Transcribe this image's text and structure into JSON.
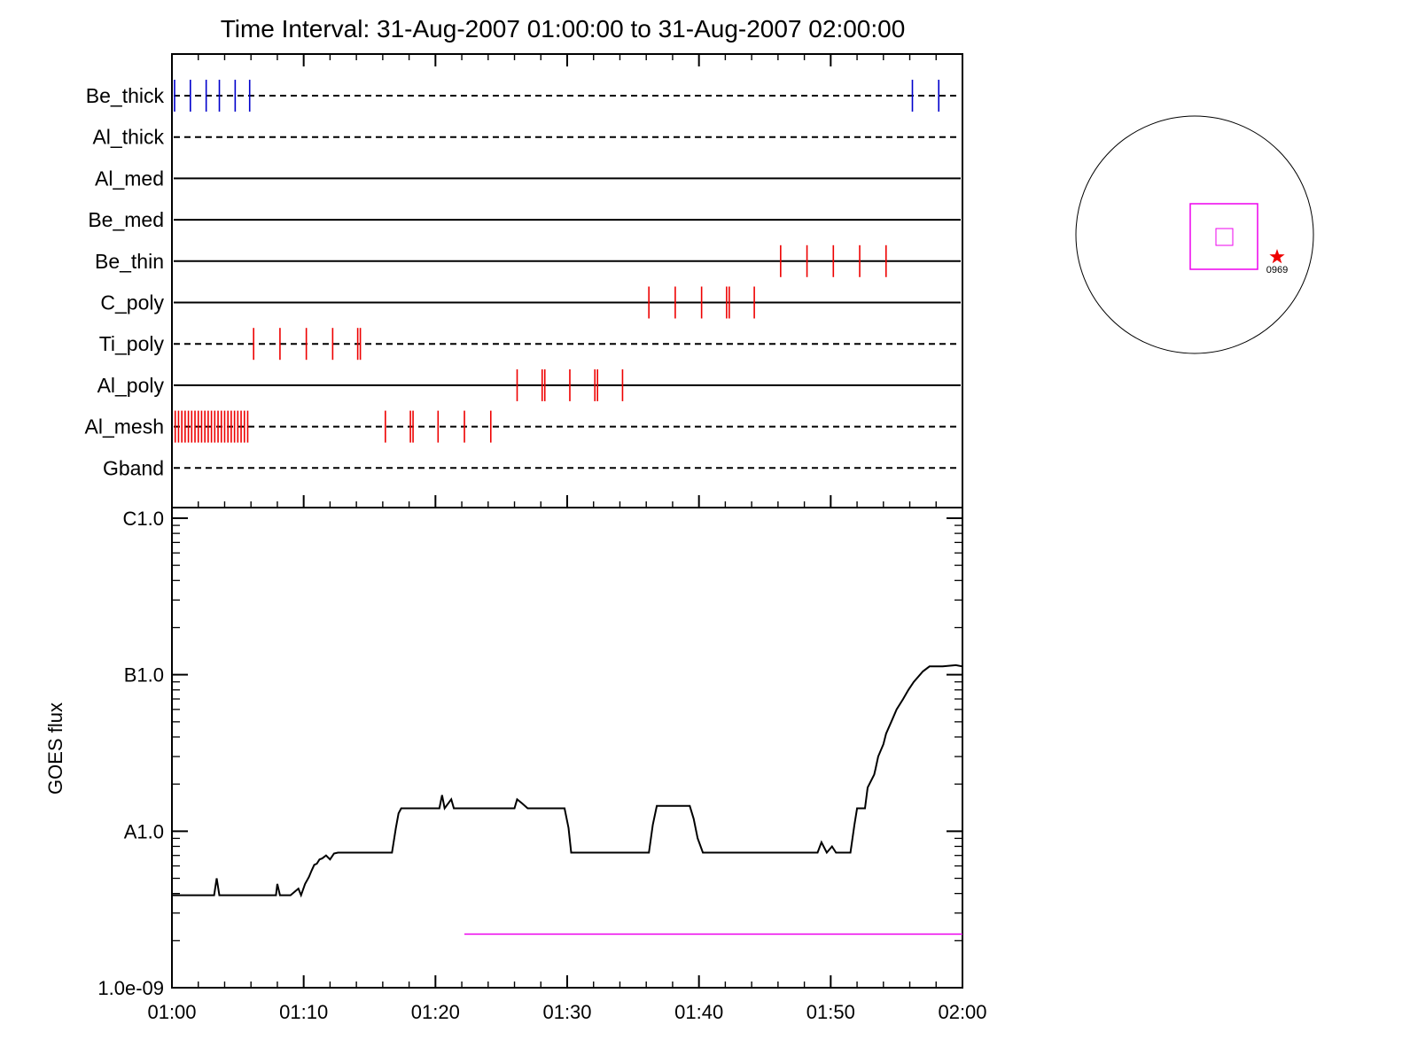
{
  "title": "Time Interval: 31-Aug-2007 01:00:00 to 31-Aug-2007 02:00:00",
  "chart_data": [
    {
      "type": "event-timeline",
      "x_range": [
        "01:00",
        "02:00"
      ],
      "x_unit": "minutes after 01:00",
      "channels": [
        {
          "name": "Be_thick",
          "style": "dashed",
          "color": "#0000cc",
          "ticks": [
            0.2,
            1.4,
            2.6,
            3.6,
            4.8,
            5.9,
            56.2,
            58.2
          ]
        },
        {
          "name": "Al_thick",
          "style": "dashed",
          "color": "#000000",
          "ticks": []
        },
        {
          "name": "Al_med",
          "style": "solid",
          "color": "#000000",
          "ticks": []
        },
        {
          "name": "Be_med",
          "style": "solid",
          "color": "#000000",
          "ticks": []
        },
        {
          "name": "Be_thin",
          "style": "solid",
          "color": "#ee0000",
          "ticks": [
            46.2,
            48.2,
            50.2,
            52.2,
            54.2
          ]
        },
        {
          "name": "C_poly",
          "style": "solid",
          "color": "#ee0000",
          "ticks": [
            36.2,
            38.2,
            40.2,
            42.1,
            42.3,
            44.2
          ]
        },
        {
          "name": "Ti_poly",
          "style": "dashed",
          "color": "#ee0000",
          "ticks": [
            6.2,
            8.2,
            10.2,
            12.2,
            14.1,
            14.3
          ]
        },
        {
          "name": "Al_poly",
          "style": "solid",
          "color": "#ee0000",
          "ticks": [
            26.2,
            28.1,
            28.3,
            30.2,
            32.1,
            32.3,
            34.2
          ]
        },
        {
          "name": "Al_mesh",
          "style": "dashed",
          "color": "#ee0000",
          "ticks": [
            0.25,
            0.5,
            0.75,
            1.0,
            1.25,
            1.5,
            1.75,
            2.0,
            2.25,
            2.5,
            2.75,
            3.0,
            3.25,
            3.5,
            3.75,
            4.0,
            4.25,
            4.5,
            4.75,
            5.0,
            5.25,
            5.5,
            5.75,
            16.2,
            18.1,
            18.3,
            20.2,
            22.2,
            24.2
          ]
        },
        {
          "name": "Gband",
          "style": "dashed",
          "color": "#000000",
          "ticks": []
        }
      ]
    },
    {
      "type": "line",
      "ylabel": "GOES flux",
      "yscale": "log",
      "ylim": [
        1e-09,
        1e-06
      ],
      "y_ticks": [
        {
          "label": "C1.0",
          "value": 1e-06
        },
        {
          "label": "B1.0",
          "value": 1e-07
        },
        {
          "label": "A1.0",
          "value": 1e-08
        },
        {
          "label": "1.0e-09",
          "value": 1e-09
        }
      ],
      "x_ticks": [
        "01:00",
        "01:10",
        "01:20",
        "01:30",
        "01:40",
        "01:50",
        "02:00"
      ],
      "xlim": [
        0,
        60
      ],
      "series": [
        {
          "color": "#000000",
          "x": [
            0,
            0.5,
            3.2,
            3.4,
            3.6,
            7.9,
            8,
            8.2,
            9,
            9.6,
            9.8,
            10.1,
            10.4,
            10.6,
            10.8,
            11,
            11.2,
            11.4,
            11.7,
            12,
            12.3,
            12.6,
            13,
            13.4,
            13.9,
            14.5,
            15.5,
            16.7,
            17,
            17.2,
            17.4,
            20.3,
            20.5,
            20.7,
            21.2,
            21.4,
            22.5,
            26,
            26.2,
            26.6,
            27,
            28,
            29.8,
            30.1,
            30.3,
            31,
            32,
            33.8,
            36.2,
            36.5,
            36.8,
            37.3,
            37.6,
            38,
            39.3,
            39.6,
            39.9,
            40.3,
            41,
            44.8,
            45,
            47,
            48.6,
            49,
            49.3,
            49.7,
            50.1,
            50.4,
            50.8,
            51.1,
            51.5,
            51.8,
            52,
            52.6,
            52.8,
            53.3,
            53.4,
            53.6,
            54,
            54.2,
            54.6,
            55,
            55.5,
            55.9,
            56.3,
            57,
            57.5,
            58.5,
            59.5,
            60
          ],
          "y": [
            3.9e-09,
            3.9e-09,
            3.9e-09,
            5e-09,
            3.9e-09,
            3.9e-09,
            4.6e-09,
            3.9e-09,
            3.9e-09,
            4.3e-09,
            3.9e-09,
            4.6e-09,
            5.1e-09,
            5.6e-09,
            6.1e-09,
            6.2e-09,
            6.6e-09,
            6.7e-09,
            7e-09,
            6.6e-09,
            7.2e-09,
            7.3e-09,
            7.3e-09,
            7.3e-09,
            7.3e-09,
            7.3e-09,
            7.3e-09,
            7.3e-09,
            1.05e-08,
            1.3e-08,
            1.4e-08,
            1.4e-08,
            1.7e-08,
            1.4e-08,
            1.6e-08,
            1.4e-08,
            1.4e-08,
            1.4e-08,
            1.6e-08,
            1.5e-08,
            1.4e-08,
            1.4e-08,
            1.4e-08,
            1.05e-08,
            7.3e-09,
            7.3e-09,
            7.3e-09,
            7.3e-09,
            7.3e-09,
            1.1e-08,
            1.45e-08,
            1.45e-08,
            1.45e-08,
            1.45e-08,
            1.45e-08,
            1.2e-08,
            9e-09,
            7.3e-09,
            7.3e-09,
            7.3e-09,
            7.3e-09,
            7.3e-09,
            7.3e-09,
            7.3e-09,
            8.5e-09,
            7.3e-09,
            8e-09,
            7.3e-09,
            7.3e-09,
            7.3e-09,
            7.3e-09,
            1.1e-08,
            1.4e-08,
            1.4e-08,
            1.9e-08,
            2.3e-08,
            2.5e-08,
            3e-08,
            3.6e-08,
            4.2e-08,
            5e-08,
            6e-08,
            7e-08,
            8e-08,
            9e-08,
            1.05e-07,
            1.13e-07,
            1.13e-07,
            1.15e-07,
            1.13e-07
          ]
        },
        {
          "color": "#ee00ee",
          "x": [
            22.2,
            60
          ],
          "y": [
            2.2e-09,
            2.2e-09
          ]
        }
      ]
    },
    {
      "type": "solar-disk-map",
      "box_color": "#ee00ee",
      "marker_color": "#ee0000",
      "region_label": "0969"
    }
  ]
}
